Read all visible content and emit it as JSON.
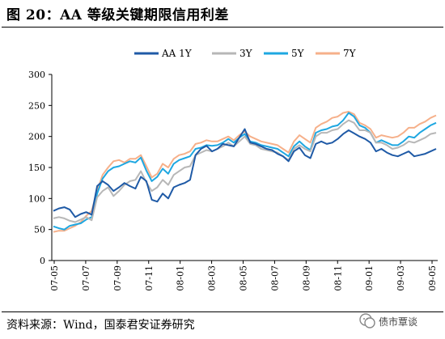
{
  "header": {
    "title": "图 20：AA 等级关键期限信用利差"
  },
  "footer": {
    "source": "资料来源：Wind，国泰君安证券研究",
    "watermark": "债市覃谈"
  },
  "chart_data": {
    "type": "line",
    "title": "",
    "xlabel": "",
    "ylabel": "",
    "ylim": [
      0,
      300
    ],
    "yticks": [
      0,
      50,
      100,
      150,
      200,
      250,
      300
    ],
    "x_tick_labels": [
      "07-05",
      "07-07",
      "07-09",
      "07-11",
      "08-01",
      "08-03",
      "08-05",
      "08-07",
      "08-09",
      "08-11",
      "09-01",
      "09-03",
      "09-05"
    ],
    "grid": false,
    "legend_position": "top",
    "colors": {
      "AA 1Y": "#1f5aa6",
      "3Y": "#b7b7b7",
      "5Y": "#1ea7e1",
      "7Y": "#f6b08a"
    },
    "series": [
      {
        "name": "AA 1Y",
        "values": [
          80,
          84,
          86,
          82,
          70,
          75,
          78,
          74,
          120,
          128,
          122,
          112,
          118,
          125,
          120,
          116,
          135,
          128,
          98,
          95,
          108,
          100,
          118,
          122,
          125,
          130,
          170,
          180,
          185,
          176,
          180,
          188,
          186,
          184,
          198,
          212,
          190,
          188,
          184,
          180,
          178,
          172,
          168,
          160,
          176,
          182,
          170,
          165,
          188,
          192,
          188,
          190,
          196,
          204,
          210,
          205,
          200,
          196,
          190,
          176,
          180,
          174,
          170,
          168,
          172,
          176,
          168,
          170,
          172,
          176,
          180
        ]
      },
      {
        "name": "3Y",
        "values": [
          68,
          70,
          68,
          64,
          62,
          66,
          70,
          65,
          102,
          112,
          118,
          104,
          112,
          122,
          128,
          130,
          144,
          126,
          112,
          118,
          130,
          122,
          138,
          144,
          150,
          152,
          170,
          174,
          178,
          176,
          180,
          184,
          190,
          184,
          192,
          200,
          188,
          186,
          180,
          178,
          176,
          174,
          168,
          162,
          180,
          186,
          180,
          176,
          200,
          206,
          206,
          210,
          212,
          220,
          226,
          222,
          210,
          210,
          206,
          190,
          190,
          186,
          180,
          182,
          186,
          192,
          190,
          194,
          198,
          204,
          206
        ]
      },
      {
        "name": "5Y",
        "values": [
          55,
          52,
          50,
          56,
          58,
          60,
          66,
          70,
          108,
          132,
          144,
          150,
          152,
          156,
          160,
          158,
          166,
          145,
          128,
          135,
          148,
          140,
          156,
          162,
          165,
          168,
          180,
          182,
          186,
          185,
          186,
          190,
          196,
          190,
          198,
          204,
          192,
          190,
          186,
          184,
          182,
          180,
          174,
          168,
          184,
          192,
          184,
          178,
          206,
          210,
          212,
          216,
          218,
          226,
          238,
          232,
          218,
          214,
          206,
          190,
          194,
          190,
          186,
          186,
          192,
          200,
          198,
          206,
          212,
          218,
          222
        ]
      },
      {
        "name": "7Y",
        "values": [
          46,
          48,
          48,
          52,
          56,
          62,
          72,
          80,
          112,
          138,
          150,
          160,
          162,
          158,
          164,
          164,
          170,
          152,
          134,
          140,
          156,
          150,
          164,
          170,
          172,
          176,
          188,
          190,
          194,
          192,
          192,
          196,
          200,
          194,
          202,
          208,
          200,
          196,
          192,
          190,
          188,
          186,
          180,
          174,
          192,
          202,
          196,
          190,
          214,
          220,
          224,
          230,
          232,
          238,
          240,
          236,
          222,
          218,
          212,
          198,
          202,
          200,
          198,
          200,
          206,
          214,
          214,
          220,
          224,
          230,
          234
        ]
      }
    ]
  }
}
